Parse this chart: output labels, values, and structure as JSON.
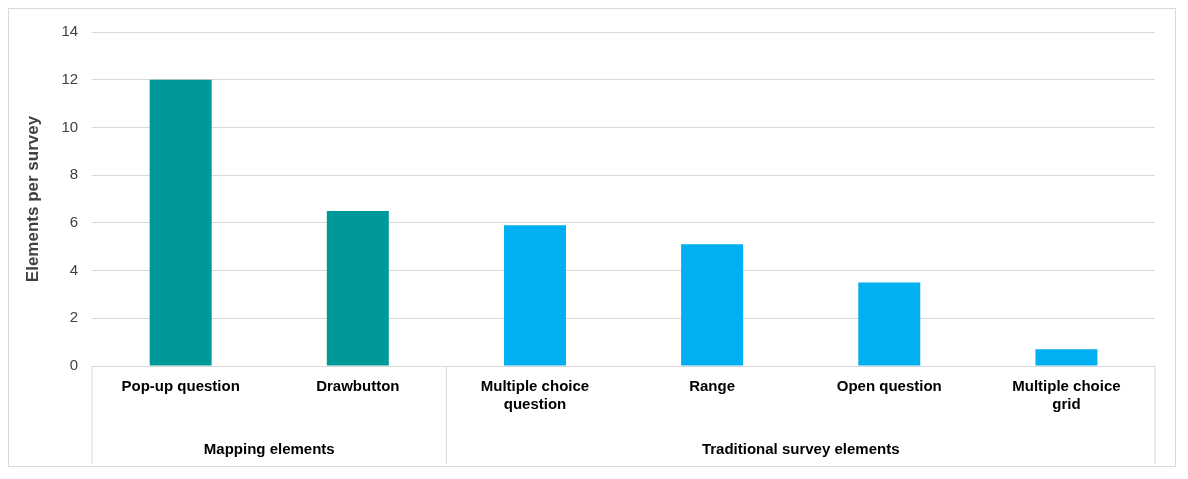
{
  "chart_data": {
    "type": "bar",
    "ylabel": "Elements per survey",
    "categories": [
      "Pop-up question",
      "Drawbutton",
      "Multiple choice question",
      "Range",
      "Open question",
      "Multiple choice grid"
    ],
    "values": [
      12.0,
      6.5,
      5.9,
      5.1,
      3.5,
      0.7
    ],
    "colors": [
      "#009999",
      "#009999",
      "#00b0f0",
      "#00b0f0",
      "#00b0f0",
      "#00b0f0"
    ],
    "ylim": [
      0,
      14
    ],
    "yticks": [
      0,
      2,
      4,
      6,
      8,
      10,
      12,
      14
    ],
    "grid": "y",
    "legend": false,
    "annotations": [
      "Mapping elements",
      "Traditional survey elements"
    ]
  }
}
